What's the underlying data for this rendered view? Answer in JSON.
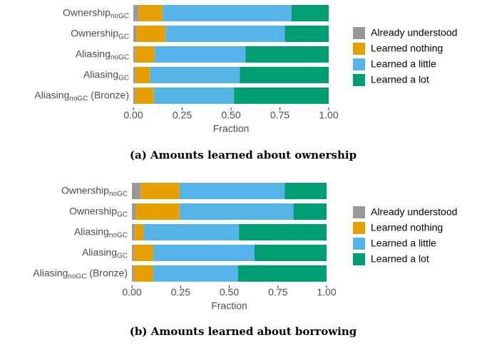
{
  "chart_data": [
    {
      "type": "stacked-barh",
      "caption": "(a) Amounts learned about ownership",
      "xlabel": "Fraction",
      "categories": [
        {
          "text": "Ownership",
          "sub": "noGC"
        },
        {
          "text": "Ownership",
          "sub": "GC"
        },
        {
          "text": "Aliasing",
          "sub": "noGC"
        },
        {
          "text": "Aliasing",
          "sub": "GC"
        },
        {
          "text": "Aliasing",
          "sub": "noGC",
          "suffix": " (Bronze)"
        }
      ],
      "series": [
        {
          "name": "Already understood",
          "color": "#999999",
          "values": [
            0.026,
            0.015,
            0.01,
            0.01,
            0.01
          ]
        },
        {
          "name": "Learned nothing",
          "color": "#E69F00",
          "values": [
            0.124,
            0.15,
            0.1,
            0.075,
            0.095
          ]
        },
        {
          "name": "Learned a little",
          "color": "#56B4E9",
          "values": [
            0.66,
            0.61,
            0.465,
            0.46,
            0.41
          ]
        },
        {
          "name": "Learned a lot",
          "color": "#009E73",
          "values": [
            0.19,
            0.225,
            0.425,
            0.455,
            0.485
          ]
        }
      ],
      "xlim": [
        0,
        1
      ],
      "xticks": [
        {
          "value": 0,
          "label": "0.00"
        },
        {
          "value": 0.25,
          "label": "0.25"
        },
        {
          "value": 0.5,
          "label": "0.50"
        },
        {
          "value": 0.75,
          "label": "0.75"
        },
        {
          "value": 1,
          "label": "1.00"
        }
      ],
      "legend": "right"
    },
    {
      "type": "stacked-barh",
      "caption": "(b) Amounts learned about borrowing",
      "xlabel": "Fraction",
      "categories": [
        {
          "text": "Ownership",
          "sub": "noGC"
        },
        {
          "text": "Ownership",
          "sub": "GC"
        },
        {
          "text": "Aliasing",
          "sub": "noGC"
        },
        {
          "text": "Aliasing",
          "sub": "GC"
        },
        {
          "text": "Aliasing",
          "sub": "noGC",
          "suffix": " (Bronze)"
        }
      ],
      "series": [
        {
          "name": "Already understood",
          "color": "#999999",
          "values": [
            0.045,
            0.02,
            0.015,
            0.01,
            0.01
          ]
        },
        {
          "name": "Learned nothing",
          "color": "#E69F00",
          "values": [
            0.2,
            0.225,
            0.045,
            0.1,
            0.1
          ]
        },
        {
          "name": "Learned a little",
          "color": "#56B4E9",
          "values": [
            0.54,
            0.585,
            0.49,
            0.52,
            0.435
          ]
        },
        {
          "name": "Learned a lot",
          "color": "#009E73",
          "values": [
            0.215,
            0.17,
            0.45,
            0.37,
            0.455
          ]
        }
      ],
      "xlim": [
        0,
        1
      ],
      "xticks": [
        {
          "value": 0,
          "label": "0.00"
        },
        {
          "value": 0.25,
          "label": "0.25"
        },
        {
          "value": 0.5,
          "label": "0.50"
        },
        {
          "value": 0.75,
          "label": "0.75"
        },
        {
          "value": 1,
          "label": "1.00"
        }
      ],
      "legend": "right"
    }
  ]
}
